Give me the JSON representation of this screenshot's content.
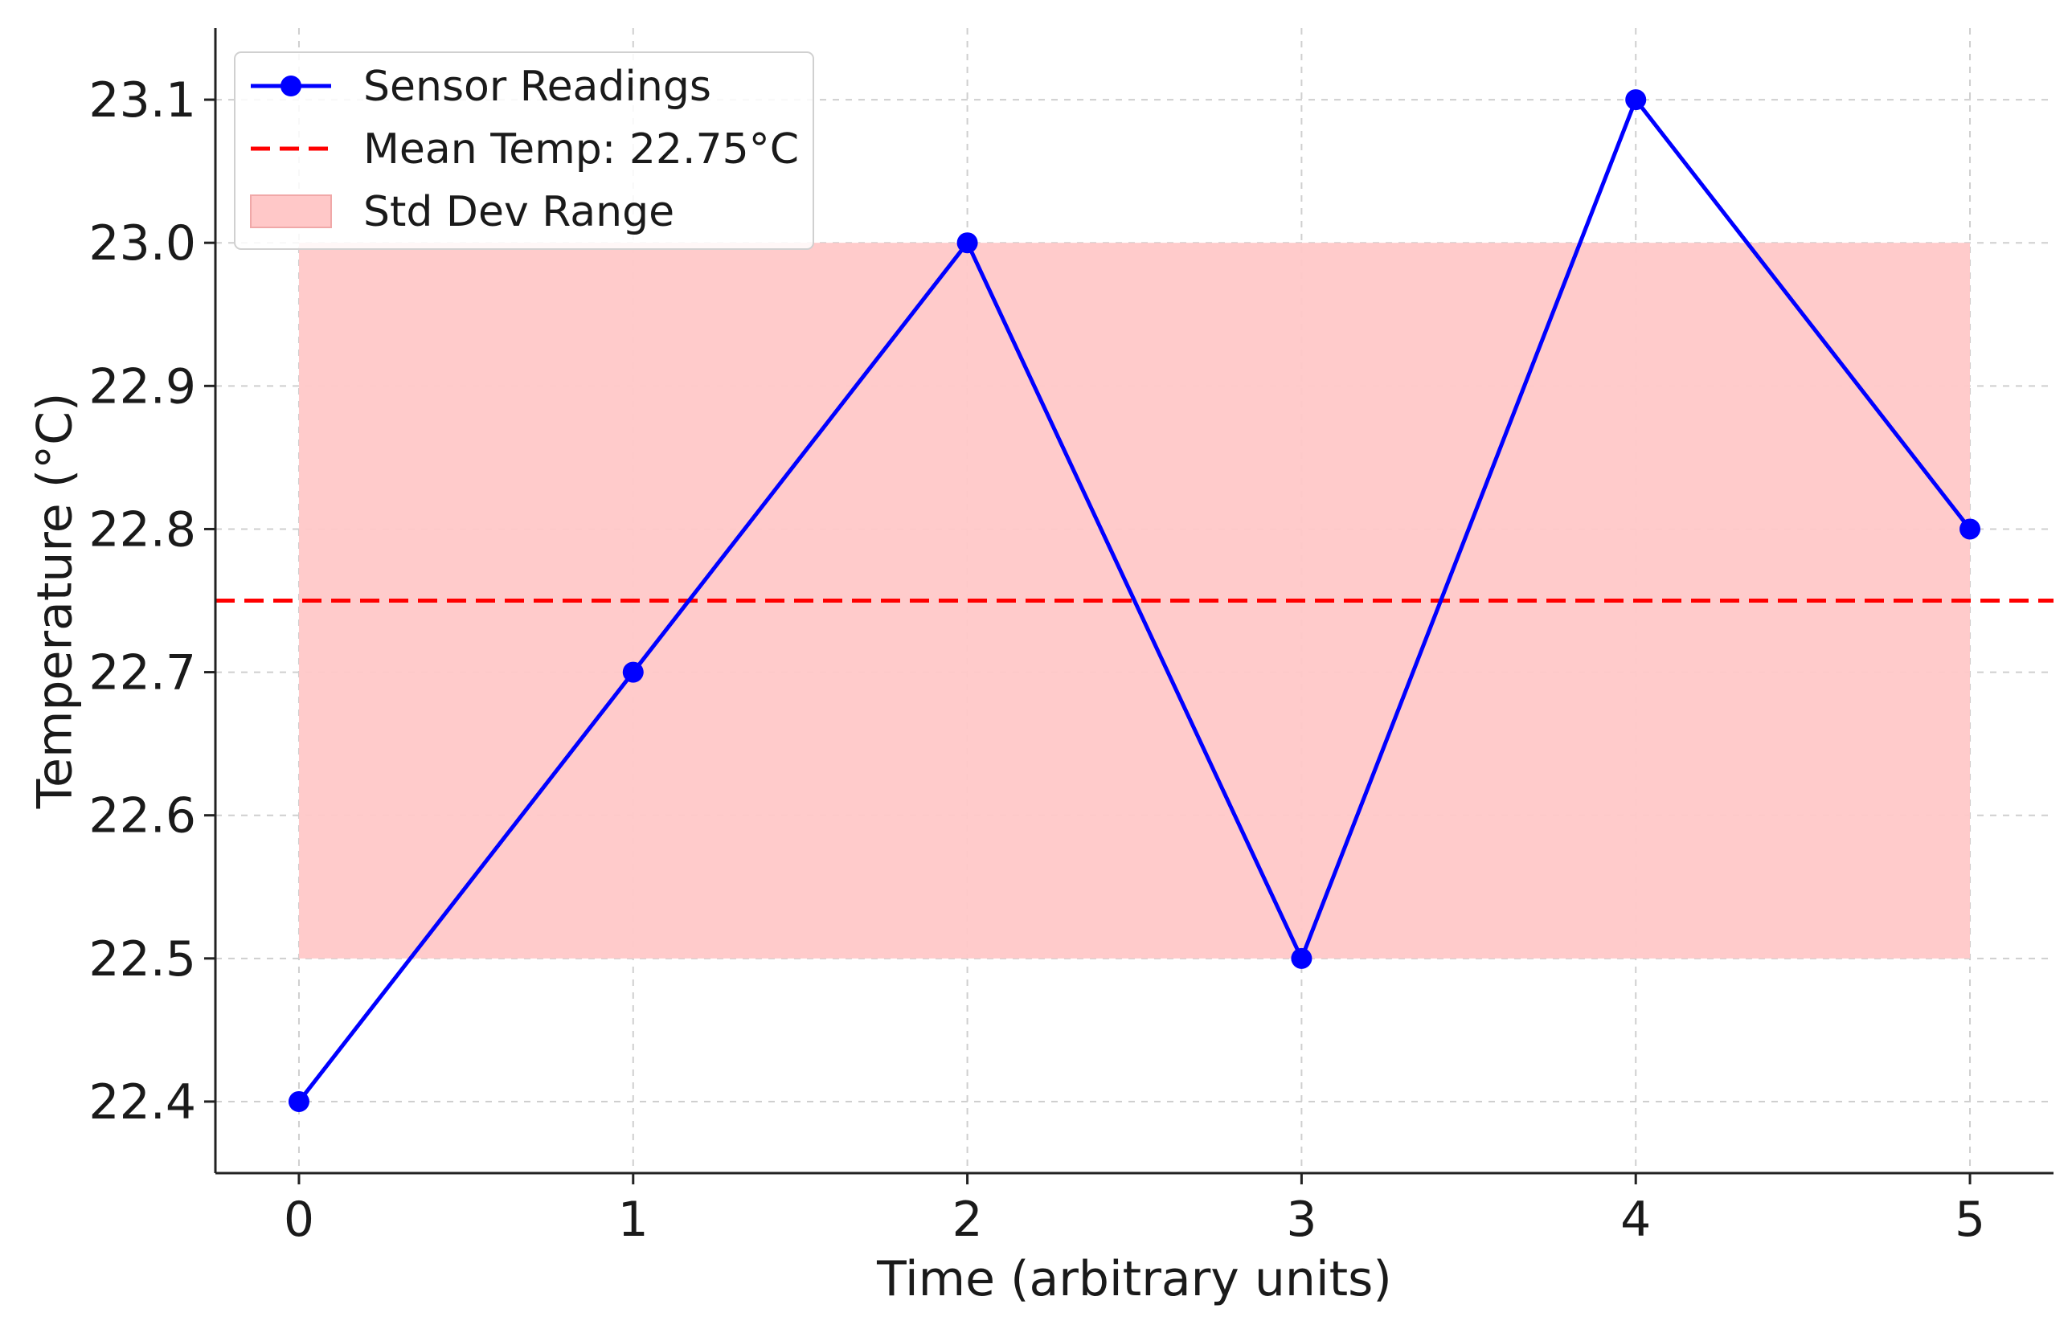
{
  "chart_data": {
    "type": "line",
    "x": [
      0,
      1,
      2,
      3,
      4,
      5
    ],
    "series": [
      {
        "name": "Sensor Readings",
        "values": [
          22.4,
          22.7,
          23.0,
          22.5,
          23.1,
          22.8
        ],
        "color": "#0000ff",
        "marker": "circle"
      }
    ],
    "mean_line": {
      "label": "Mean Temp: 22.75°C",
      "value": 22.75,
      "color": "#ff0000",
      "style": "dashed"
    },
    "std_band": {
      "label": "Std Dev Range",
      "low": 22.5,
      "high": 23.0,
      "x_start": 0,
      "x_end": 5,
      "color": "#ffc8c8"
    },
    "xlabel": "Time (arbitrary units)",
    "ylabel": "Temperature (°C)",
    "xlim": [
      -0.25,
      5.25
    ],
    "ylim": [
      22.35,
      23.15
    ],
    "x_ticks": [
      "0",
      "1",
      "2",
      "3",
      "4",
      "5"
    ],
    "y_ticks": [
      "22.4",
      "22.5",
      "22.6",
      "22.7",
      "22.8",
      "22.9",
      "23.0",
      "23.1"
    ],
    "grid": true,
    "legend_position": "top-left"
  }
}
